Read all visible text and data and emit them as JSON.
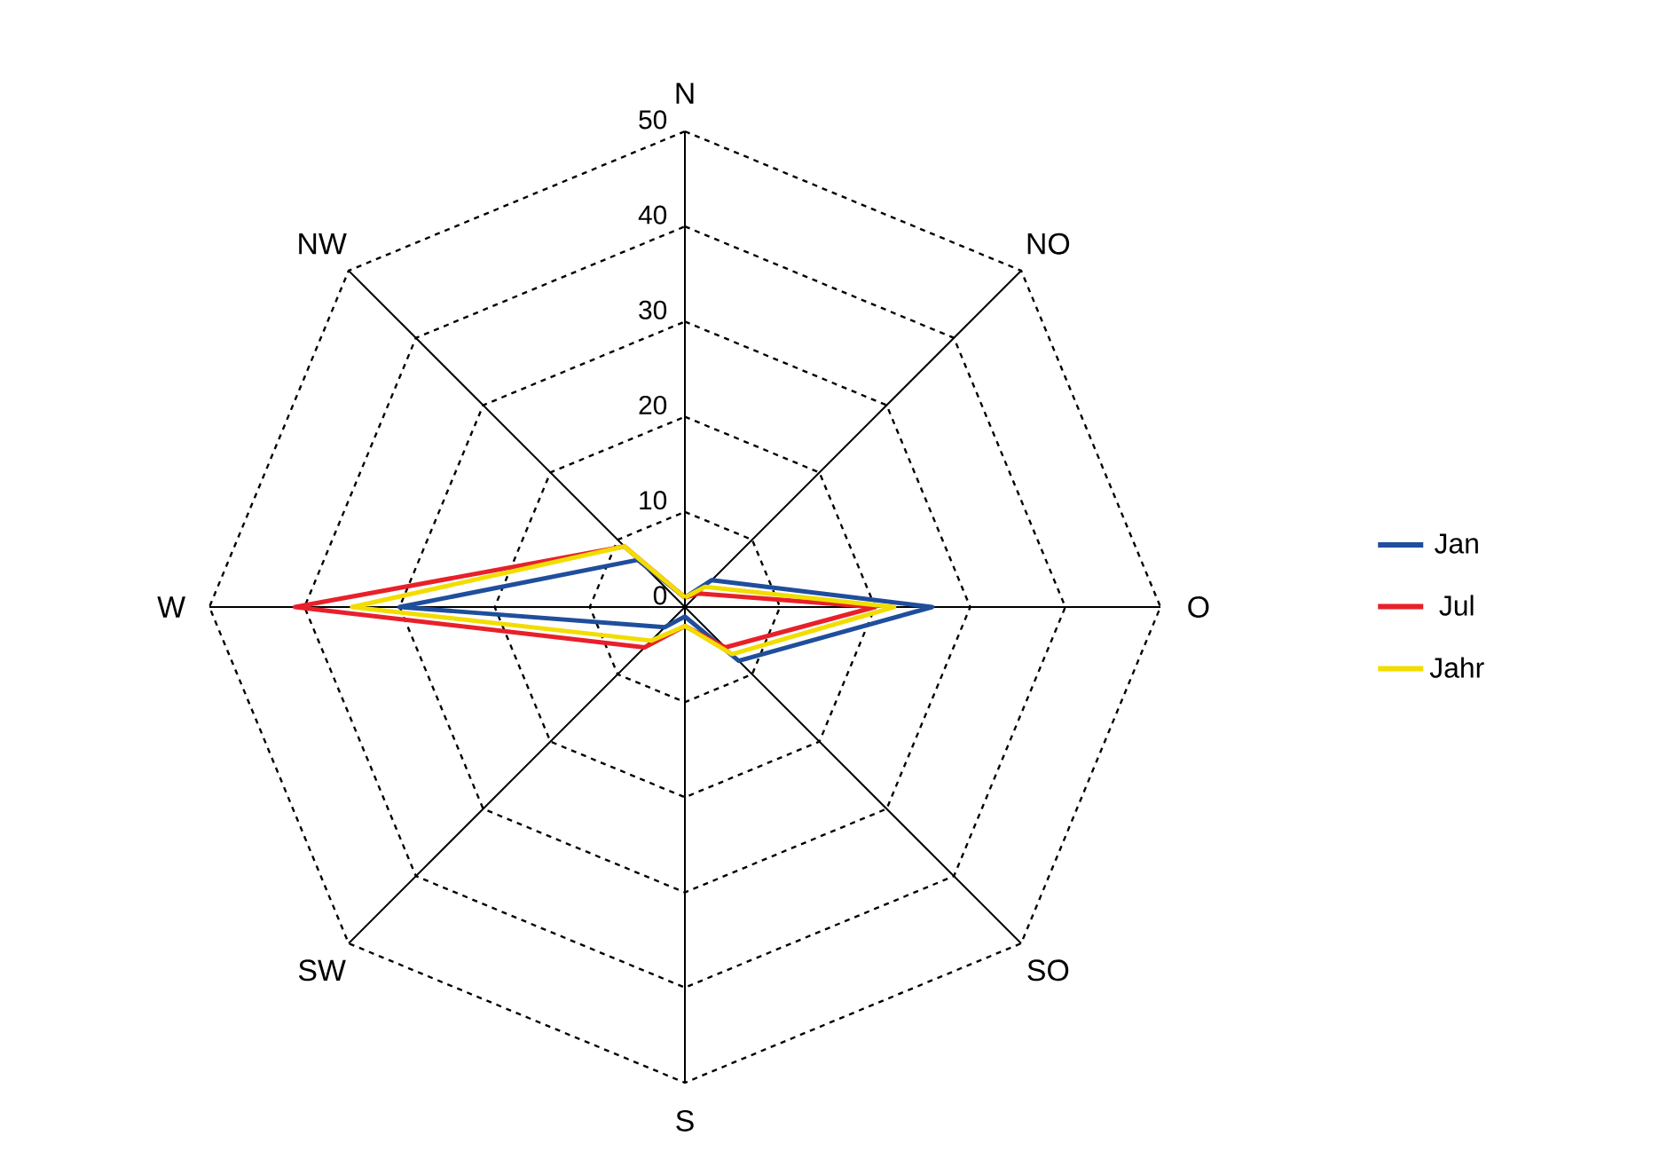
{
  "chart_data": {
    "type": "radar",
    "categories": [
      "N",
      "NO",
      "O",
      "SO",
      "S",
      "SW",
      "W",
      "NW"
    ],
    "series": [
      {
        "name": "Jan",
        "color": "#1f4e9c",
        "values": [
          1,
          4,
          26,
          8,
          1,
          3,
          30,
          7
        ]
      },
      {
        "name": "Jul",
        "color": "#e8202a",
        "values": [
          1,
          2,
          20,
          6,
          2,
          6,
          41,
          9
        ]
      },
      {
        "name": "Jahr",
        "color": "#f2dd00",
        "values": [
          1,
          3,
          22,
          7,
          2,
          5,
          35,
          9
        ]
      }
    ],
    "ylim": [
      0,
      50
    ],
    "yticks": [
      0,
      10,
      20,
      30,
      40,
      50
    ],
    "grid": true,
    "legend": "right"
  }
}
